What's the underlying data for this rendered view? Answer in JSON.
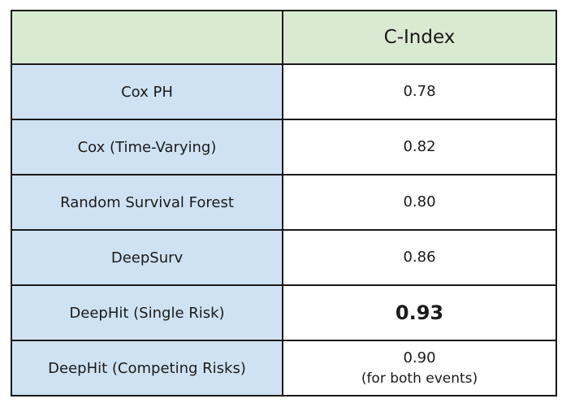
{
  "table": {
    "header": {
      "corner": "",
      "metric": "C-Index"
    },
    "rows": [
      {
        "model": "Cox PH",
        "value": "0.78",
        "note": ""
      },
      {
        "model": "Cox (Time-Varying)",
        "value": "0.82",
        "note": ""
      },
      {
        "model": "Random Survival Forest",
        "value": "0.80",
        "note": ""
      },
      {
        "model": "DeepSurv",
        "value": "0.86",
        "note": ""
      },
      {
        "model": "DeepHit (Single Risk)",
        "value": "0.93",
        "note": "",
        "emphasis": true
      },
      {
        "model": "DeepHit (Competing Risks)",
        "value": "0.90",
        "note": "(for both events)"
      }
    ]
  },
  "colors": {
    "header_fill": "#d9ead3",
    "model_fill": "#cfe2f3",
    "value_fill": "#ffffff",
    "border": "#1a1a1a"
  }
}
